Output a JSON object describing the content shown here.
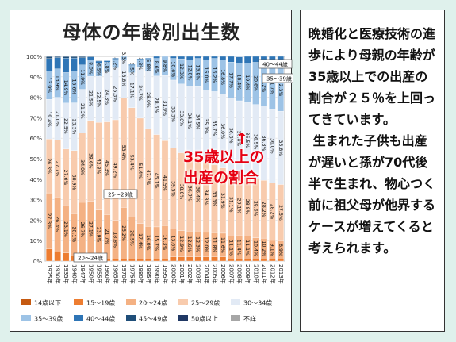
{
  "title": "母体の年齢別出生数",
  "side_text": "晩婚化と医療技術の進歩により母親の年齢が35歳以上での出産の割合が２５％を上回ってきています。\n 生まれた子供も出産が遅いと孫が70代後半で生まれ、物心つく前に祖父母が他界するケースが増えてくると考えられます。",
  "callout": {
    "arrow": "↑",
    "line1": "35歳以上の",
    "line2": "出産の割合"
  },
  "colors": {
    "age14": "#c55a11",
    "age15_19": "#ed7d31",
    "age20_24": "#f4b183",
    "age25_29": "#f8cbad",
    "age30_34": "#e2eaf5",
    "age35_39": "#9dc3e6",
    "age40_44": "#2e75b6",
    "age45_49": "#1f4e79",
    "age50": "#203864",
    "unknown": "#a6a6a6"
  },
  "chart_data": {
    "type": "bar",
    "stacked": true,
    "title": "母体の年齢別出生数",
    "categories": [
      "1925年",
      "1930年",
      "1935年",
      "1940年",
      "1947年",
      "1950年",
      "1955年",
      "1960年",
      "1965年",
      "1970年",
      "1975年",
      "1980年",
      "1985年",
      "1990年",
      "1995年",
      "2000年",
      "2001年",
      "2002年",
      "2003年",
      "2004年",
      "2005年",
      "2006年",
      "2007年",
      "2008年",
      "2009年",
      "2010年",
      "2011年",
      "2012年",
      "2013年"
    ],
    "ylim": [
      0,
      100
    ],
    "yticks": [
      "0%",
      "10%",
      "20%",
      "30%",
      "40%",
      "50%",
      "60%",
      "70%",
      "80%",
      "90%",
      "100%"
    ],
    "series": [
      {
        "name": "14歳以下",
        "color_key": "age14",
        "values": [
          0,
          0,
          0,
          0,
          0,
          0,
          0,
          0,
          0,
          0,
          0,
          0,
          0,
          0,
          0,
          0,
          0,
          0,
          0,
          0,
          0,
          0,
          0,
          0,
          0,
          0,
          0,
          0,
          0
        ]
      },
      {
        "name": "15～19歳",
        "color_key": "age15_19",
        "values": [
          6,
          5,
          4,
          3,
          2,
          2,
          1,
          1,
          1,
          1,
          1,
          1,
          1,
          1,
          1,
          2,
          2,
          2,
          2,
          2,
          2,
          2,
          1,
          1,
          1,
          1,
          1,
          1,
          1
        ]
      },
      {
        "name": "20～24歳",
        "color_key": "age20_24",
        "values": [
          27.3,
          26.3,
          23.1,
          20.1,
          26.7,
          27.1,
          23.9,
          21.7,
          18.8,
          25.2,
          20.5,
          17.4,
          16,
          15.7,
          16.3,
          13.6,
          12.9,
          12.6,
          12.3,
          12,
          11.8,
          11.6,
          11.1,
          11.4,
          11.1,
          10.4,
          10.2,
          9.1,
          8.9
        ]
      },
      {
        "name": "25～29歳",
        "color_key": "age25_29",
        "values": [
          26.3,
          27.7,
          27.6,
          30.9,
          34,
          39.6,
          42.8,
          45.3,
          49.2,
          53.4,
          53.4,
          51.4,
          47.7,
          45.1,
          41.5,
          39.5,
          38,
          36.9,
          36.4,
          34.3,
          33.3,
          31.9,
          31.1,
          29.1,
          28.8,
          28.6,
          28.2,
          28.2,
          27.5
        ]
      },
      {
        "name": "30～34歳",
        "color_key": "age30_34",
        "values": [
          19.4,
          21,
          22.5,
          23.3,
          21.2,
          21.5,
          22.5,
          24.3,
          25.3,
          18.8,
          17.1,
          24.7,
          28,
          28.6,
          31.9,
          33.3,
          33.6,
          34.1,
          34.5,
          35.1,
          35.7,
          36,
          36.3,
          36.8,
          36.5,
          36.5,
          36.3,
          36,
          35.8
        ]
      },
      {
        "name": "35～39歳",
        "color_key": "age35_39",
        "values": [
          13.9,
          13.9,
          14.9,
          15.6,
          11.9,
          8,
          6.5,
          4.8,
          4.2,
          3.3,
          3.5,
          3.8,
          5.8,
          8.6,
          9.8,
          10.6,
          12.3,
          12.8,
          13.8,
          15,
          16.2,
          16.8,
          17.7,
          18.4,
          19.4,
          20.6,
          21.2,
          21.7,
          22.3
        ]
      },
      {
        "name": "40～44歳",
        "color_key": "age40_44",
        "values": [
          6,
          5.5,
          7,
          6.3,
          3.5,
          1.5,
          1,
          0.8,
          0.6,
          0.5,
          0.5,
          0.5,
          0.6,
          1,
          1.1,
          1.4,
          1.5,
          1.6,
          1.8,
          1.9,
          2.2,
          2.4,
          2.8,
          3.1,
          3.5,
          3.7,
          3.8,
          4.3,
          4.8
        ]
      },
      {
        "name": "45～49歳",
        "color_key": "age45_49",
        "values": [
          1,
          0.5,
          0.8,
          0.7,
          0.6,
          0.3,
          0.2,
          0.1,
          0,
          0,
          0,
          0,
          0,
          0,
          0,
          0,
          0,
          0,
          0,
          0,
          0,
          0,
          0,
          0.1,
          0.1,
          0.1,
          0.1,
          0.1,
          0.1
        ]
      },
      {
        "name": "50歳以上",
        "color_key": "age50",
        "values": [
          0,
          0,
          0,
          0,
          0,
          0,
          0,
          0,
          0,
          0,
          0,
          0,
          0,
          0,
          0,
          0,
          0,
          0,
          0,
          0,
          0,
          0,
          0,
          0,
          0,
          0,
          0,
          0,
          0
        ]
      },
      {
        "name": "不詳",
        "color_key": "unknown",
        "values": [
          0,
          0,
          0,
          0,
          0,
          0,
          0,
          0,
          0,
          0,
          0,
          0,
          0,
          0,
          0,
          0,
          0,
          0,
          0,
          0,
          0,
          0,
          0,
          0,
          0,
          0,
          0,
          0,
          0
        ]
      }
    ],
    "annotations": [
      "40～44歳",
      "35～39歳",
      "25～29歳",
      "20～24歳"
    ],
    "label_series": [
      "20～24歳",
      "25～29歳",
      "30～34歳",
      "35～39歳"
    ],
    "legend_position": "bottom"
  }
}
